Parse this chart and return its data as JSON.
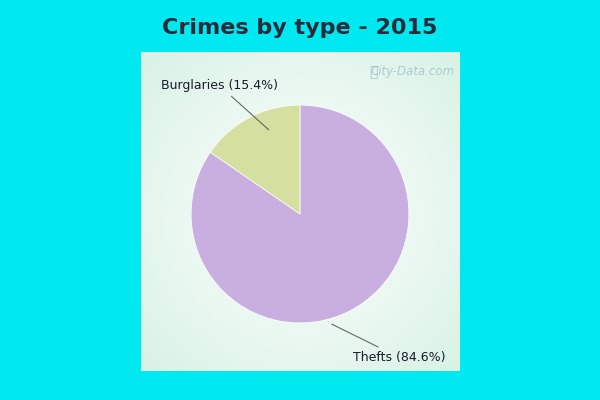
{
  "title": "Crimes by type - 2015",
  "slices": [
    {
      "label": "Thefts",
      "value": 84.6,
      "color": "#c9aee0"
    },
    {
      "label": "Burglaries",
      "value": 15.4,
      "color": "#d4dfa0"
    }
  ],
  "cyan_border": "#00e8f0",
  "bg_color": "#e8f5ee",
  "title_fontsize": 16,
  "title_color": "#2a2a3a",
  "annotation_fontsize": 9,
  "watermark": "City-Data.com",
  "border_thickness": 8
}
